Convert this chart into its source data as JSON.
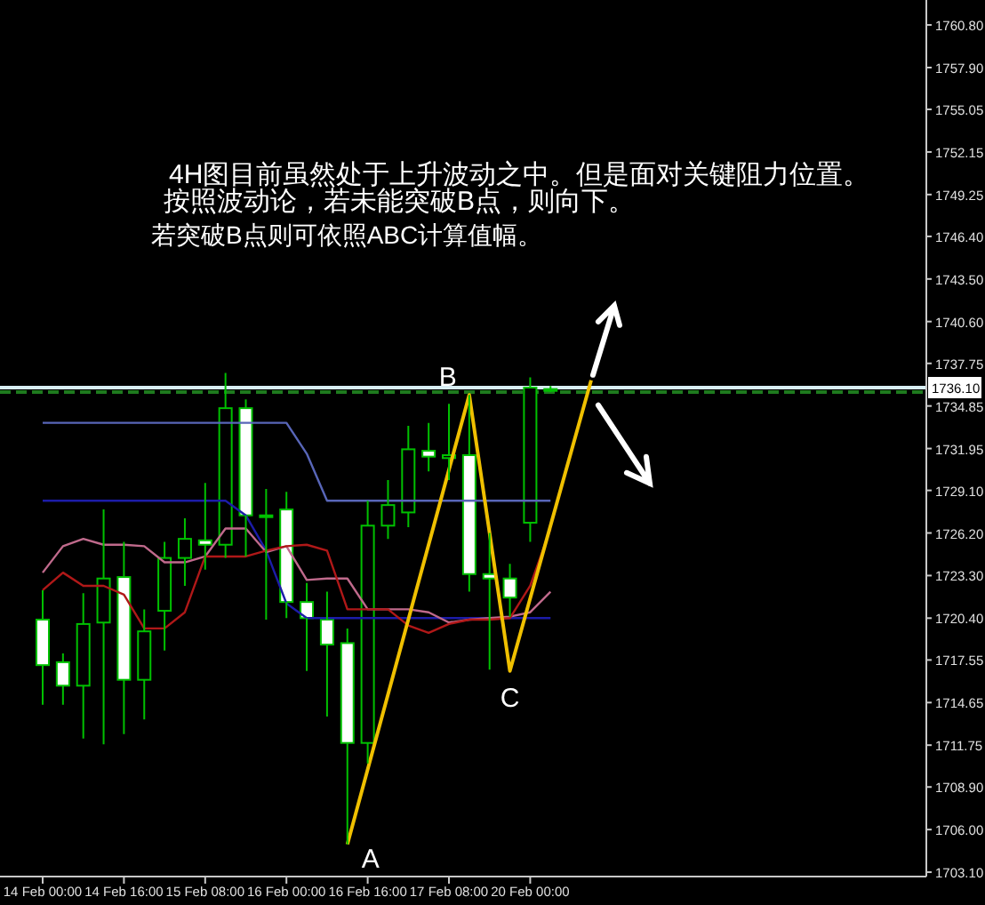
{
  "chart_data": {
    "type": "candlestick",
    "categories": [
      "14 Feb 00:00",
      null,
      null,
      null,
      "14 Feb 16:00",
      null,
      null,
      null,
      "15 Feb 08:00",
      null,
      null,
      null,
      "16 Feb 00:00",
      null,
      null,
      null,
      "16 Feb 16:00",
      null,
      null,
      null,
      "17 Feb 08:00",
      null,
      null,
      null,
      "20 Feb 00:00",
      null,
      null,
      null,
      null,
      null,
      null,
      null,
      null,
      null,
      null,
      null,
      null,
      null,
      null,
      null,
      null,
      null,
      null,
      null
    ],
    "ohlc": [
      [
        1720.3,
        1722.3,
        1714.5,
        1717.2
      ],
      [
        1717.4,
        1718.0,
        1714.5,
        1715.8
      ],
      [
        1715.8,
        1722.1,
        1712.2,
        1720.0
      ],
      [
        1720.1,
        1727.8,
        1711.8,
        1723.1
      ],
      [
        1723.2,
        1725.6,
        1712.5,
        1716.2
      ],
      [
        1716.2,
        1721.0,
        1713.5,
        1719.5
      ],
      [
        1720.9,
        1725.6,
        1718.2,
        1724.5
      ],
      [
        1724.5,
        1727.2,
        1722.6,
        1725.8
      ],
      [
        1725.7,
        1729.6,
        1723.7,
        1725.4
      ],
      [
        1725.4,
        1737.1,
        1724.5,
        1734.7
      ],
      [
        1734.7,
        1735.3,
        1724.6,
        1727.4
      ],
      [
        1727.4,
        1729.2,
        1720.3,
        1727.4
      ],
      [
        1727.8,
        1729.0,
        1720.4,
        1721.5
      ],
      [
        1721.5,
        1722.8,
        1716.8,
        1720.4
      ],
      [
        1720.3,
        1722.2,
        1713.7,
        1718.6
      ],
      [
        1718.7,
        1719.7,
        1705.0,
        1711.9
      ],
      [
        1711.9,
        1728.4,
        1710.5,
        1726.7
      ],
      [
        1726.7,
        1729.8,
        1725.8,
        1728.1
      ],
      [
        1727.6,
        1733.5,
        1726.6,
        1731.9
      ],
      [
        1731.8,
        1733.7,
        1730.4,
        1731.4
      ],
      [
        1731.3,
        1735.0,
        1729.8,
        1731.5
      ],
      [
        1731.5,
        1735.6,
        1722.2,
        1723.4
      ],
      [
        1723.4,
        1726.2,
        1716.9,
        1723.1
      ],
      [
        1723.1,
        1724.1,
        1720.5,
        1721.8
      ],
      [
        1726.9,
        1736.8,
        1725.6,
        1736.1
      ],
      [
        1736.0,
        1736.2,
        1735.8,
        1736.0
      ],
      null,
      null,
      null,
      null,
      null,
      null,
      null,
      null,
      null,
      null,
      null,
      null,
      null,
      null,
      null,
      null,
      null,
      null
    ],
    "series": [
      {
        "type": "line",
        "color": "#5866b8",
        "values": [
          1733.7,
          1733.7,
          1733.7,
          1733.7,
          1733.7,
          1733.7,
          1733.7,
          1733.7,
          1733.7,
          1733.7,
          1733.7,
          1733.7,
          1733.7,
          1731.6,
          1728.4,
          1728.4,
          1728.4,
          1728.4,
          1728.4,
          1728.4,
          1728.4,
          1728.4,
          1728.4,
          1728.4,
          1728.4,
          1728.4,
          null,
          null,
          null,
          null,
          null,
          null,
          null,
          null,
          null,
          null,
          null,
          null,
          null,
          null,
          null,
          null,
          null,
          null
        ]
      },
      {
        "type": "line",
        "color": "#1c1ca8",
        "values": [
          1728.4,
          1728.4,
          1728.4,
          1728.4,
          1728.4,
          1728.4,
          1728.4,
          1728.4,
          1728.4,
          1728.4,
          1727.4,
          1725.0,
          1721.4,
          1720.4,
          1720.4,
          1720.4,
          1720.4,
          1720.4,
          1720.4,
          1720.4,
          1720.4,
          1720.4,
          1720.4,
          1720.4,
          1720.4,
          1720.4,
          null,
          null,
          null,
          null,
          null,
          null,
          null,
          null,
          null,
          null,
          null,
          null,
          null,
          null,
          null,
          null,
          null,
          null
        ]
      },
      {
        "type": "line",
        "color": "#c06a8c",
        "values": [
          1723.5,
          1725.3,
          1725.8,
          1725.4,
          1725.4,
          1725.3,
          1724.2,
          1724.2,
          1724.6,
          1726.5,
          1726.5,
          1724.9,
          1725.3,
          1723.0,
          1723.1,
          1723.1,
          1721.0,
          1721.0,
          1721.0,
          1720.8,
          1720.1,
          1720.3,
          1720.4,
          1720.5,
          1720.8,
          1722.2,
          null,
          null,
          null,
          null,
          null,
          null,
          null,
          null,
          null,
          null,
          null,
          null,
          null,
          null,
          null,
          null,
          null,
          null
        ]
      },
      {
        "type": "line",
        "color": "#b01818",
        "values": [
          1722.3,
          1723.5,
          1722.6,
          1722.6,
          1722.0,
          1719.7,
          1719.7,
          1720.8,
          1724.6,
          1724.6,
          1724.6,
          1725.0,
          1725.3,
          1725.4,
          1725.0,
          1721.0,
          1721.0,
          1721.0,
          1719.9,
          1719.4,
          1720.0,
          1720.3,
          1720.3,
          1720.4,
          1722.6,
          1726.5,
          null,
          null,
          null,
          null,
          null,
          null,
          null,
          null,
          null,
          null,
          null,
          null,
          null,
          null,
          null,
          null,
          null,
          null
        ]
      },
      {
        "type": "line",
        "color": "#f0c000",
        "values": [
          null,
          null,
          null,
          null,
          null,
          null,
          null,
          null,
          null,
          null,
          null,
          null,
          null,
          null,
          null,
          1705.0,
          null,
          null,
          null,
          null,
          null,
          1735.6,
          null,
          1716.8,
          null,
          null,
          null,
          1736.6,
          null,
          null,
          null,
          null,
          null,
          null,
          null,
          null,
          null,
          null,
          null,
          null,
          null,
          null,
          null,
          null
        ],
        "value_labels": [
          null,
          null,
          null,
          null,
          null,
          null,
          null,
          null,
          null,
          null,
          null,
          null,
          null,
          null,
          null,
          "A",
          null,
          null,
          null,
          null,
          null,
          "B",
          null,
          "C",
          null,
          null,
          null,
          null,
          null,
          null,
          null,
          null,
          null,
          null,
          null,
          null,
          null,
          null,
          null,
          null,
          null,
          null,
          null,
          null
        ]
      }
    ],
    "ylim": [
      1702.8,
      1762.5
    ],
    "yticks": [
      {
        "value": 1760.8,
        "label": "1760.80"
      },
      {
        "value": 1757.9,
        "label": "1757.90"
      },
      {
        "value": 1755.05,
        "label": "1755.05"
      },
      {
        "value": 1752.15,
        "label": "1752.15"
      },
      {
        "value": 1749.25,
        "label": "1749.25"
      },
      {
        "value": 1746.4,
        "label": "1746.40"
      },
      {
        "value": 1743.5,
        "label": "1743.50"
      },
      {
        "value": 1740.6,
        "label": "1740.60"
      },
      {
        "value": 1737.75,
        "label": "1737.75"
      },
      {
        "value": 1734.85,
        "label": "1734.85"
      },
      {
        "value": 1731.95,
        "label": "1731.95"
      },
      {
        "value": 1729.1,
        "label": "1729.10"
      },
      {
        "value": 1726.2,
        "label": "1726.20"
      },
      {
        "value": 1723.3,
        "label": "1723.30"
      },
      {
        "value": 1720.4,
        "label": "1720.40"
      },
      {
        "value": 1717.55,
        "label": "1717.55"
      },
      {
        "value": 1714.65,
        "label": "1714.65"
      },
      {
        "value": 1711.75,
        "label": "1711.75"
      },
      {
        "value": 1708.9,
        "label": "1708.90"
      },
      {
        "value": 1706,
        "label": "1706.00"
      },
      {
        "value": 1703.1,
        "label": "1703.10"
      }
    ],
    "ref_lines": [
      {
        "axis": "y",
        "value": 1736.1,
        "label": "1736.10",
        "color": "#d8eef4",
        "line_style": "solid"
      },
      {
        "axis": "y",
        "value": 1735.8,
        "color": "#1e7a1e",
        "line_style": "dashed"
      }
    ],
    "annotations": [
      "4H图目前虽然处于上升波动之中。但是面对关键阻力位置。",
      "按照波动论，若未能突破B点，则向下。",
      "若突破B点则可依照ABC计算值幅。"
    ]
  }
}
